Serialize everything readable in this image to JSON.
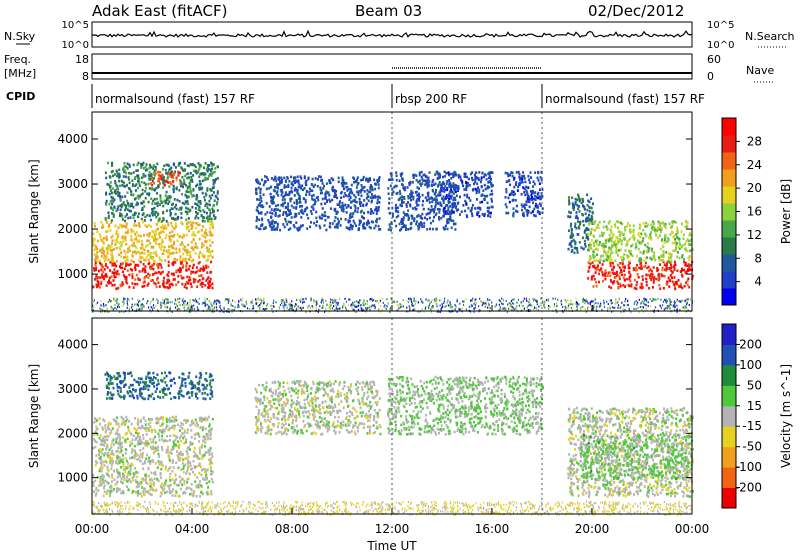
{
  "header": {
    "station": "Adak East (fitACF)",
    "beam": "Beam 03",
    "date": "02/Dec/2012"
  },
  "left_labels": {
    "nsky": "N.Sky",
    "freq": "Freq.",
    "freq_unit": "[MHz]",
    "cpid": "CPID"
  },
  "right_labels": {
    "nsearch": "N.Search",
    "nave": "Nave"
  },
  "noise_axis": {
    "left_ticks": [
      "10^5",
      "10^0"
    ],
    "right_ticks": [
      "10^5",
      "10^0"
    ]
  },
  "freq_axis": {
    "left_ticks": [
      "18",
      "8"
    ],
    "right_ticks": [
      "60",
      "0"
    ]
  },
  "cpid_segments": [
    {
      "label": "normalsound (fast) 157 RF",
      "start_h": 0,
      "end_h": 12
    },
    {
      "label": "rbsp 200 RF",
      "start_h": 12,
      "end_h": 18
    },
    {
      "label": "normalsound (fast) 157 RF",
      "start_h": 18,
      "end_h": 24
    }
  ],
  "colors": {
    "power": [
      "#0000ee",
      "#2040c8",
      "#1e5a9a",
      "#2a7a4a",
      "#48a848",
      "#8cd23c",
      "#e6d21e",
      "#f0a01e",
      "#f06414",
      "#e61e14",
      "#ff0000"
    ],
    "velocity": [
      "#ee0000",
      "#f06414",
      "#f0a01e",
      "#e6d21e",
      "#b4b4b4",
      "#50c83c",
      "#1e8c3c",
      "#2050b4",
      "#2020c8"
    ]
  },
  "chart_data": [
    {
      "type": "heatmap",
      "name": "power",
      "ylabel": "Slant Range [km]",
      "yticks": [
        "4000",
        "3000",
        "2000",
        "1000"
      ],
      "ylim": [
        180,
        4600
      ],
      "colorbar_label": "Power [dB]",
      "colorbar_ticks": [
        "28",
        "24",
        "20",
        "16",
        "12",
        "8",
        "4"
      ],
      "colorbar_range": [
        0,
        32
      ],
      "echo_regions": [
        {
          "t": [
            0.0,
            4.8
          ],
          "r": [
            700,
            1300
          ],
          "value": 28
        },
        {
          "t": [
            0.0,
            4.8
          ],
          "r": [
            1300,
            2200
          ],
          "value": 20
        },
        {
          "t": [
            0.5,
            5.0
          ],
          "r": [
            2200,
            3500
          ],
          "value": 10
        },
        {
          "t": [
            2.3,
            3.5
          ],
          "r": [
            3000,
            3300
          ],
          "value": 26
        },
        {
          "t": [
            6.5,
            11.5
          ],
          "r": [
            2000,
            3200
          ],
          "value": 6
        },
        {
          "t": [
            11.8,
            14.5
          ],
          "r": [
            2000,
            3300
          ],
          "value": 6
        },
        {
          "t": [
            14.0,
            16.0
          ],
          "r": [
            2300,
            3300
          ],
          "value": 5
        },
        {
          "t": [
            16.5,
            18.0
          ],
          "r": [
            2300,
            3300
          ],
          "value": 5
        },
        {
          "t": [
            19.0,
            20.0
          ],
          "r": [
            1500,
            2800
          ],
          "value": 8
        },
        {
          "t": [
            19.8,
            24.0
          ],
          "r": [
            700,
            1300
          ],
          "value": 28
        },
        {
          "t": [
            19.8,
            24.0
          ],
          "r": [
            1300,
            2200
          ],
          "value": 16
        }
      ]
    },
    {
      "type": "heatmap",
      "name": "velocity",
      "ylabel": "Slant Range [km]",
      "xlabel": "Time UT",
      "yticks": [
        "4000",
        "3000",
        "2000",
        "1000"
      ],
      "ylim": [
        180,
        4600
      ],
      "colorbar_label": "Velocity [m s^-1]",
      "colorbar_ticks": [
        "200",
        "100",
        "50",
        "15",
        "-15",
        "-50",
        "-100",
        "-200"
      ],
      "colorbar_range": [
        -250,
        250
      ],
      "xticks": [
        "00:00",
        "04:00",
        "08:00",
        "12:00",
        "16:00",
        "20:00",
        "00:00"
      ],
      "xlim_hours": [
        0,
        24
      ],
      "echo_regions": [
        {
          "t": [
            0.0,
            4.8
          ],
          "r": [
            600,
            2400
          ],
          "value": 0
        },
        {
          "t": [
            0.5,
            4.8
          ],
          "r": [
            2800,
            3400
          ],
          "value": 150
        },
        {
          "t": [
            6.5,
            11.5
          ],
          "r": [
            2000,
            3200
          ],
          "value": 0
        },
        {
          "t": [
            11.8,
            18.0
          ],
          "r": [
            2000,
            3300
          ],
          "value": 30
        },
        {
          "t": [
            19.0,
            24.0
          ],
          "r": [
            600,
            2600
          ],
          "value": 0
        },
        {
          "t": [
            19.5,
            24.0
          ],
          "r": [
            1000,
            2000
          ],
          "value": 40
        }
      ]
    }
  ]
}
